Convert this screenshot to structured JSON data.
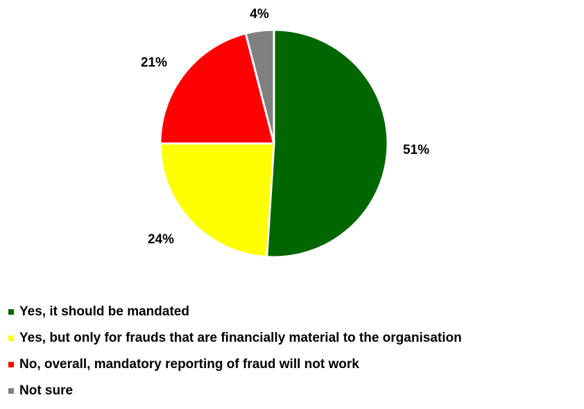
{
  "chart_data": {
    "type": "pie",
    "slices": [
      {
        "label": "Yes, it should be mandated",
        "value": 51,
        "value_label": "51%",
        "color": "#006600"
      },
      {
        "label": "Yes, but only for frauds that are financially material to the organisation",
        "value": 24,
        "value_label": "24%",
        "color": "#FFFF00"
      },
      {
        "label": "No, overall, mandatory reporting of fraud will not work",
        "value": 21,
        "value_label": "21%",
        "color": "#FF0000"
      },
      {
        "label": "Not sure",
        "value": 4,
        "value_label": "4%",
        "color": "#808080"
      }
    ],
    "legend_position": "bottom-left"
  }
}
